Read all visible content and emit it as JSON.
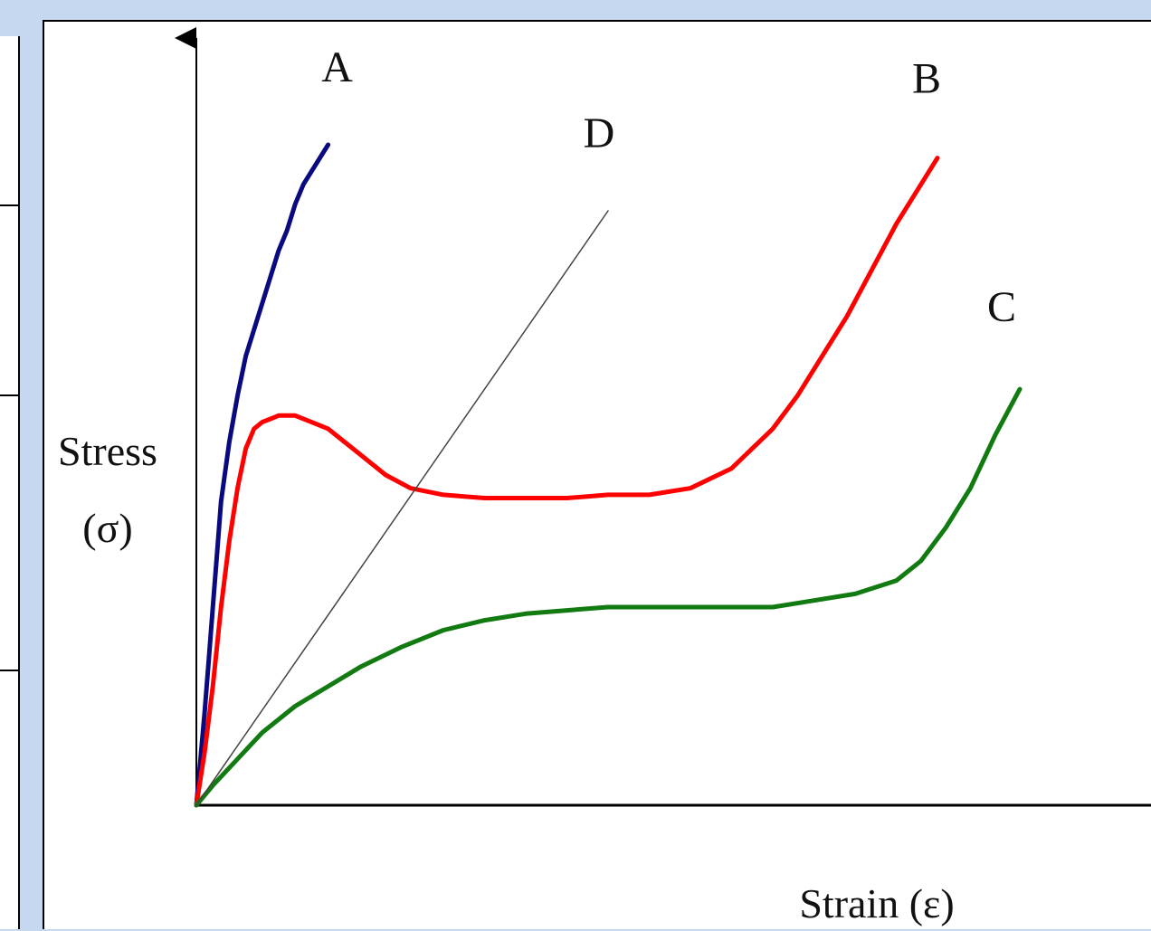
{
  "chart_data": {
    "type": "line",
    "title": "",
    "xlabel": "Strain (ε)",
    "ylabel_line1": "Stress",
    "ylabel_line2": "(σ)",
    "grid": false,
    "legend": "none",
    "xlim": [
      0,
      100
    ],
    "ylim": [
      0,
      100
    ],
    "series": [
      {
        "name": "A",
        "color": "#0a0a80",
        "x": [
          0,
          0.5,
          1,
          1.5,
          2,
          2.5,
          3,
          4,
          5,
          6,
          7,
          8,
          9,
          10,
          11,
          12,
          13,
          14,
          15,
          16
        ],
        "y": [
          0,
          7,
          14,
          22,
          30,
          38,
          46,
          55,
          62,
          68,
          72,
          76,
          80,
          84,
          87,
          91,
          94,
          96,
          98,
          100
        ]
      },
      {
        "name": "B",
        "color": "#ff0000",
        "x": [
          0,
          1,
          2,
          3,
          4,
          5,
          6,
          7,
          8,
          9,
          10,
          12,
          14,
          16,
          18,
          20,
          23,
          26,
          30,
          35,
          40,
          45,
          50,
          55,
          60,
          65,
          70,
          73,
          76,
          79,
          82,
          85,
          88,
          90
        ],
        "y": [
          0,
          8,
          18,
          30,
          40,
          48,
          54,
          57,
          58,
          58.5,
          59,
          59,
          58,
          57,
          55,
          53,
          50,
          48,
          47,
          46.5,
          46.5,
          46.5,
          47,
          47,
          48,
          51,
          57,
          62,
          68,
          74,
          81,
          88,
          94,
          98
        ]
      },
      {
        "name": "C",
        "color": "#117a11",
        "x": [
          0,
          2,
          5,
          8,
          12,
          16,
          20,
          25,
          30,
          35,
          40,
          45,
          50,
          55,
          60,
          65,
          70,
          75,
          80,
          85,
          88,
          91,
          94,
          97,
          100
        ],
        "y": [
          0,
          3,
          7,
          11,
          15,
          18,
          21,
          24,
          26.5,
          28,
          29,
          29.5,
          30,
          30,
          30,
          30,
          30,
          31,
          32,
          34,
          37,
          42,
          48,
          56,
          63
        ]
      },
      {
        "name": "D",
        "color": "#444444",
        "x": [
          0,
          50
        ],
        "y": [
          0,
          90
        ]
      }
    ]
  }
}
